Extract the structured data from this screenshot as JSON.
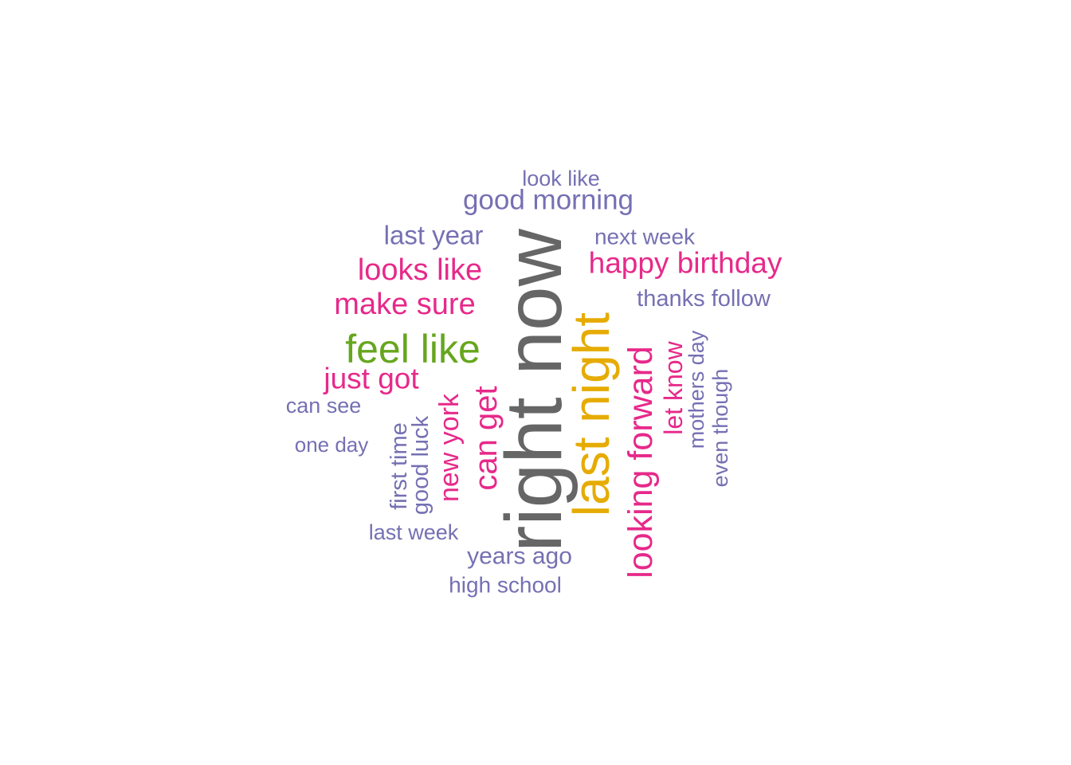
{
  "palette": {
    "gray": "#666666",
    "gold": "#E6AB02",
    "green": "#66A61E",
    "pink": "#E7298A",
    "purple": "#7570B3"
  },
  "words": [
    {
      "text": "right now",
      "color": "gray"
    },
    {
      "text": "last night",
      "color": "gold"
    },
    {
      "text": "feel like",
      "color": "green"
    },
    {
      "text": "looking forward",
      "color": "pink"
    },
    {
      "text": "happy birthday",
      "color": "pink"
    },
    {
      "text": "looks like",
      "color": "pink"
    },
    {
      "text": "make sure",
      "color": "pink"
    },
    {
      "text": "just got",
      "color": "pink"
    },
    {
      "text": "can get",
      "color": "pink"
    },
    {
      "text": "new york",
      "color": "pink"
    },
    {
      "text": "let know",
      "color": "pink"
    },
    {
      "text": "good morning",
      "color": "purple"
    },
    {
      "text": "last year",
      "color": "purple"
    },
    {
      "text": "years ago",
      "color": "purple"
    },
    {
      "text": "next week",
      "color": "purple"
    },
    {
      "text": "thanks follow",
      "color": "purple"
    },
    {
      "text": "look like",
      "color": "purple"
    },
    {
      "text": "can see",
      "color": "purple"
    },
    {
      "text": "one day",
      "color": "purple"
    },
    {
      "text": "last week",
      "color": "purple"
    },
    {
      "text": "high school",
      "color": "purple"
    },
    {
      "text": "first time",
      "color": "purple"
    },
    {
      "text": "good luck",
      "color": "purple"
    },
    {
      "text": "mothers day",
      "color": "purple"
    },
    {
      "text": "even though",
      "color": "purple"
    }
  ]
}
